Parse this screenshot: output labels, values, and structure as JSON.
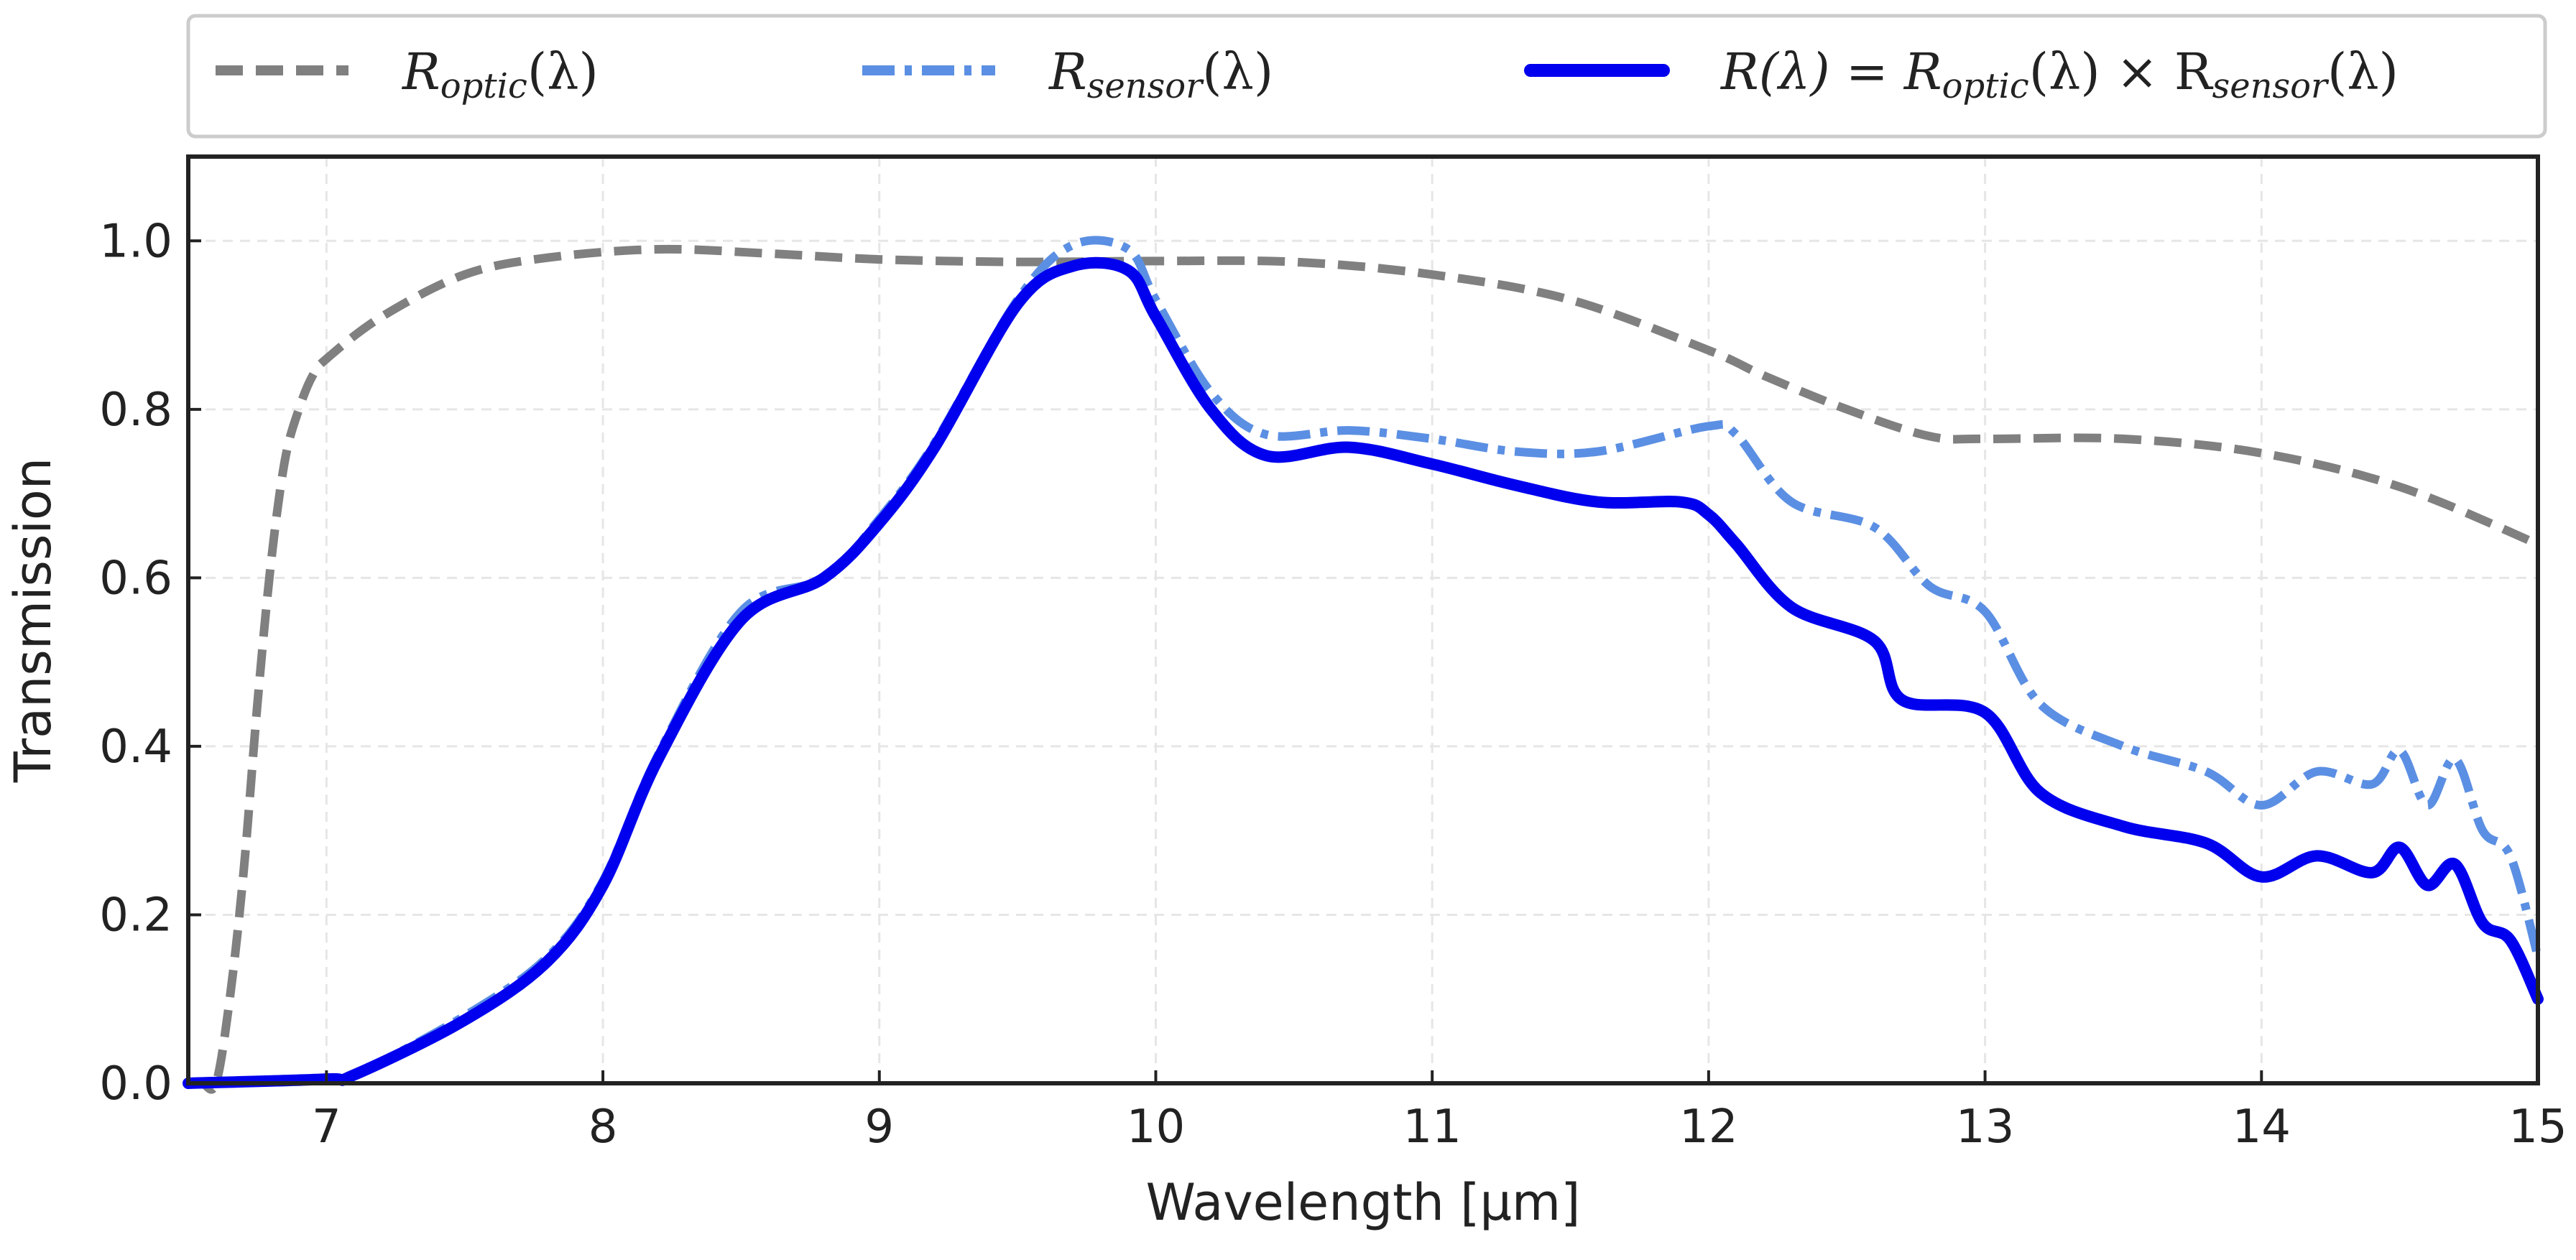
{
  "chart_data": {
    "type": "line",
    "xlabel": "Wavelength [μm]",
    "ylabel": "Transmission",
    "xlim": [
      6.5,
      15
    ],
    "ylim": [
      0,
      1.1
    ],
    "x_ticks": [
      7,
      8,
      9,
      10,
      11,
      12,
      13,
      14,
      15
    ],
    "y_ticks": [
      0.0,
      0.2,
      0.4,
      0.6,
      0.8,
      1.0
    ],
    "x_tick_labels": [
      "7",
      "8",
      "9",
      "10",
      "11",
      "12",
      "13",
      "14",
      "15"
    ],
    "y_tick_labels": [
      "0.0",
      "0.2",
      "0.4",
      "0.6",
      "0.8",
      "1.0"
    ],
    "grid": true,
    "legend_position": "top, outside plot, single row",
    "series": [
      {
        "id": "optic",
        "name": "R_optic(λ)",
        "color": "#808080",
        "style": "dashed",
        "x": [
          6.5,
          6.55,
          6.6,
          6.65,
          6.7,
          6.75,
          6.8,
          6.85,
          6.9,
          6.95,
          7.0,
          7.2,
          7.5,
          7.8,
          8.2,
          8.6,
          9.0,
          9.5,
          10.0,
          10.5,
          11.0,
          11.5,
          12.0,
          12.2,
          12.5,
          12.8,
          13.0,
          13.5,
          14.0,
          14.5,
          15.0
        ],
        "y": [
          0.0,
          0.0,
          0.0,
          0.1,
          0.25,
          0.45,
          0.62,
          0.74,
          0.8,
          0.84,
          0.86,
          0.91,
          0.96,
          0.98,
          0.99,
          0.985,
          0.978,
          0.975,
          0.976,
          0.975,
          0.96,
          0.93,
          0.87,
          0.84,
          0.8,
          0.768,
          0.765,
          0.765,
          0.748,
          0.708,
          0.64
        ]
      },
      {
        "id": "sensor",
        "name": "R_sensor(λ)",
        "color": "#5b8fe3",
        "style": "dashdot",
        "x": [
          6.5,
          7.0,
          7.1,
          7.5,
          7.8,
          8.0,
          8.2,
          8.5,
          8.8,
          9.0,
          9.2,
          9.5,
          9.7,
          9.9,
          10.0,
          10.2,
          10.4,
          10.7,
          11.0,
          11.3,
          11.6,
          12.0,
          12.1,
          12.3,
          12.6,
          12.8,
          13.0,
          13.2,
          13.5,
          13.8,
          14.0,
          14.2,
          14.4,
          14.5,
          14.6,
          14.7,
          14.8,
          14.9,
          15.0
        ],
        "y": [
          0.0,
          0.005,
          0.01,
          0.08,
          0.15,
          0.24,
          0.39,
          0.56,
          0.6,
          0.67,
          0.76,
          0.93,
          0.995,
          0.99,
          0.93,
          0.82,
          0.77,
          0.775,
          0.765,
          0.75,
          0.75,
          0.78,
          0.77,
          0.69,
          0.66,
          0.59,
          0.56,
          0.45,
          0.4,
          0.37,
          0.33,
          0.37,
          0.355,
          0.395,
          0.33,
          0.385,
          0.3,
          0.27,
          0.15
        ]
      },
      {
        "id": "total",
        "name": "R(λ) = R_optic(λ) × R_sensor(λ)",
        "color": "#0000ee",
        "style": "solid",
        "x": [
          6.5,
          7.0,
          7.1,
          7.5,
          7.8,
          8.0,
          8.2,
          8.5,
          8.8,
          9.0,
          9.2,
          9.5,
          9.7,
          9.9,
          10.0,
          10.2,
          10.4,
          10.7,
          11.0,
          11.3,
          11.6,
          11.9,
          12.0,
          12.1,
          12.3,
          12.6,
          12.7,
          13.0,
          13.2,
          13.5,
          13.8,
          14.0,
          14.2,
          14.4,
          14.5,
          14.6,
          14.7,
          14.8,
          14.9,
          15.0
        ],
        "y": [
          0.0,
          0.005,
          0.01,
          0.075,
          0.145,
          0.235,
          0.385,
          0.55,
          0.6,
          0.665,
          0.755,
          0.925,
          0.97,
          0.965,
          0.91,
          0.8,
          0.745,
          0.755,
          0.735,
          0.71,
          0.69,
          0.69,
          0.675,
          0.64,
          0.565,
          0.525,
          0.455,
          0.44,
          0.345,
          0.305,
          0.285,
          0.245,
          0.27,
          0.25,
          0.28,
          0.235,
          0.26,
          0.19,
          0.17,
          0.1
        ]
      }
    ]
  },
  "legend": {
    "items": [
      {
        "id": "optic",
        "main": "R",
        "sub": "optic",
        "tail": "(λ)"
      },
      {
        "id": "sensor",
        "main": "R",
        "sub": "sensor",
        "tail": "(λ)"
      },
      {
        "id": "total",
        "main": "R(λ) = R",
        "sub": "optic",
        "mid": "(λ) × R",
        "sub2": "sensor",
        "tail": "(λ)"
      }
    ]
  }
}
